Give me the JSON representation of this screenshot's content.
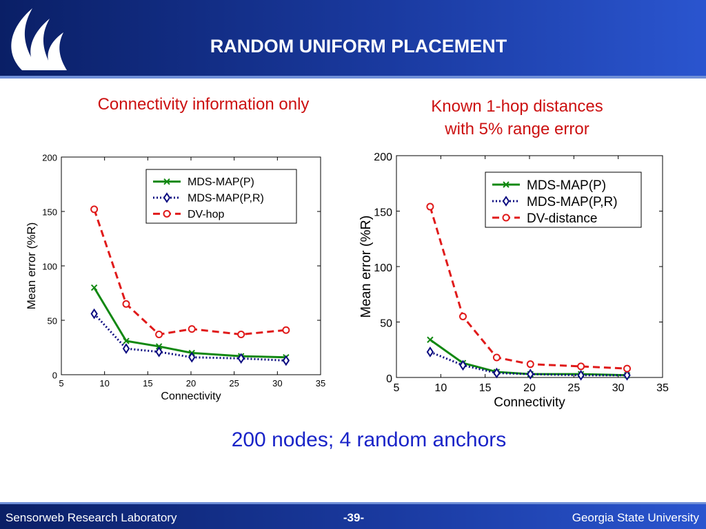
{
  "header": {
    "title": "RANDOM UNIFORM PLACEMENT",
    "logo_icon": "gsu-flame-logo-icon",
    "bg_color": "#0a1f66"
  },
  "subtitles": {
    "left": "Connectivity information only",
    "right_line1": "Known 1-hop distances",
    "right_line2": "with 5% range error"
  },
  "caption": "200 nodes; 4 random anchors",
  "footer": {
    "left": "Sensorweb Research Laboratory",
    "center": "-39-",
    "right": "Georgia State University"
  },
  "chart_data": [
    {
      "type": "line",
      "xlabel": "Connectivity",
      "ylabel": "Mean error (%R)",
      "xlim": [
        5,
        35
      ],
      "ylim": [
        0,
        200
      ],
      "xticks": [
        5,
        10,
        15,
        20,
        25,
        30,
        35
      ],
      "yticks": [
        0,
        50,
        100,
        150,
        200
      ],
      "grid": false,
      "legend": "top-right",
      "series": [
        {
          "name": "MDS-MAP(P)",
          "color": "#118811",
          "style": "solid",
          "marker": "x",
          "x": [
            8.8,
            12.5,
            16.3,
            20.1,
            25.8,
            31.0
          ],
          "y": [
            80,
            31,
            26,
            20,
            17,
            16
          ]
        },
        {
          "name": "MDS-MAP(P,R)",
          "color": "#0a0a80",
          "style": "dotted",
          "marker": "diamond",
          "x": [
            8.8,
            12.5,
            16.3,
            20.1,
            25.8,
            31.0
          ],
          "y": [
            56,
            24,
            21,
            16,
            15,
            13
          ]
        },
        {
          "name": "DV-hop",
          "color": "#e01a1a",
          "style": "dashed",
          "marker": "circle",
          "x": [
            8.8,
            12.5,
            16.3,
            20.1,
            25.8,
            31.0
          ],
          "y": [
            152,
            65,
            37,
            42,
            37,
            41
          ]
        }
      ]
    },
    {
      "type": "line",
      "xlabel": "Connectivity",
      "ylabel": "Mean error (%R)",
      "xlim": [
        5,
        35
      ],
      "ylim": [
        0,
        200
      ],
      "xticks": [
        5,
        10,
        15,
        20,
        25,
        30,
        35
      ],
      "yticks": [
        0,
        50,
        100,
        150,
        200
      ],
      "grid": false,
      "legend": "top-right",
      "series": [
        {
          "name": "MDS-MAP(P)",
          "color": "#118811",
          "style": "solid",
          "marker": "x",
          "x": [
            8.8,
            12.5,
            16.3,
            20.1,
            25.8,
            31.0
          ],
          "y": [
            34,
            13,
            5,
            3,
            3,
            2
          ]
        },
        {
          "name": "MDS-MAP(P,R)",
          "color": "#0a0a80",
          "style": "dotted",
          "marker": "diamond",
          "x": [
            8.8,
            12.5,
            16.3,
            20.1,
            25.8,
            31.0
          ],
          "y": [
            23,
            11,
            4,
            3,
            2,
            2
          ]
        },
        {
          "name": "DV-distance",
          "color": "#e01a1a",
          "style": "dashed",
          "marker": "circle",
          "x": [
            8.8,
            12.5,
            16.3,
            20.1,
            25.8,
            31.0
          ],
          "y": [
            154,
            55,
            18,
            12,
            10,
            8
          ]
        }
      ]
    }
  ]
}
